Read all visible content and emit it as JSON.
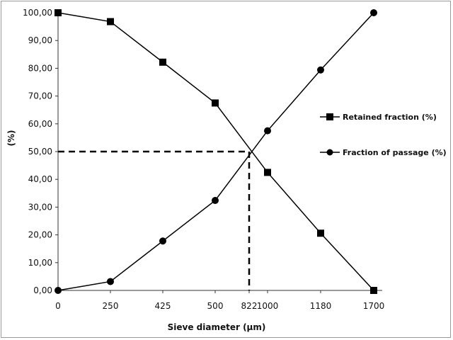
{
  "chart_data": {
    "type": "line",
    "title": "",
    "xlabel": "Sieve diameter (µm)",
    "ylabel": "(%)",
    "categories": [
      "0",
      "250",
      "425",
      "500",
      "822",
      "1000",
      "1180",
      "1700"
    ],
    "ylim": [
      0,
      100
    ],
    "yticks": [
      "0,00",
      "10,00",
      "20,00",
      "30,00",
      "40,00",
      "50,00",
      "60,00",
      "70,00",
      "80,00",
      "90,00",
      "100,00"
    ],
    "grid": false,
    "legend_position": "right",
    "series": [
      {
        "name": "Retained fraction (%)",
        "marker": "square",
        "points": [
          {
            "x": "0",
            "y": 100
          },
          {
            "x": "250",
            "y": 96.8
          },
          {
            "x": "425",
            "y": 82.2
          },
          {
            "x": "500",
            "y": 67.5
          },
          {
            "x": "1000",
            "y": 42.5
          },
          {
            "x": "1180",
            "y": 20.6
          },
          {
            "x": "1700",
            "y": 0
          }
        ]
      },
      {
        "name": "Fraction of passage (%)",
        "marker": "circle",
        "points": [
          {
            "x": "0",
            "y": 0
          },
          {
            "x": "250",
            "y": 3.2
          },
          {
            "x": "425",
            "y": 17.8
          },
          {
            "x": "500",
            "y": 32.4
          },
          {
            "x": "1000",
            "y": 57.5
          },
          {
            "x": "1180",
            "y": 79.4
          },
          {
            "x": "1700",
            "y": 100
          }
        ]
      }
    ],
    "reference_point": {
      "x": "822",
      "y": 50,
      "style": "dashed"
    }
  }
}
